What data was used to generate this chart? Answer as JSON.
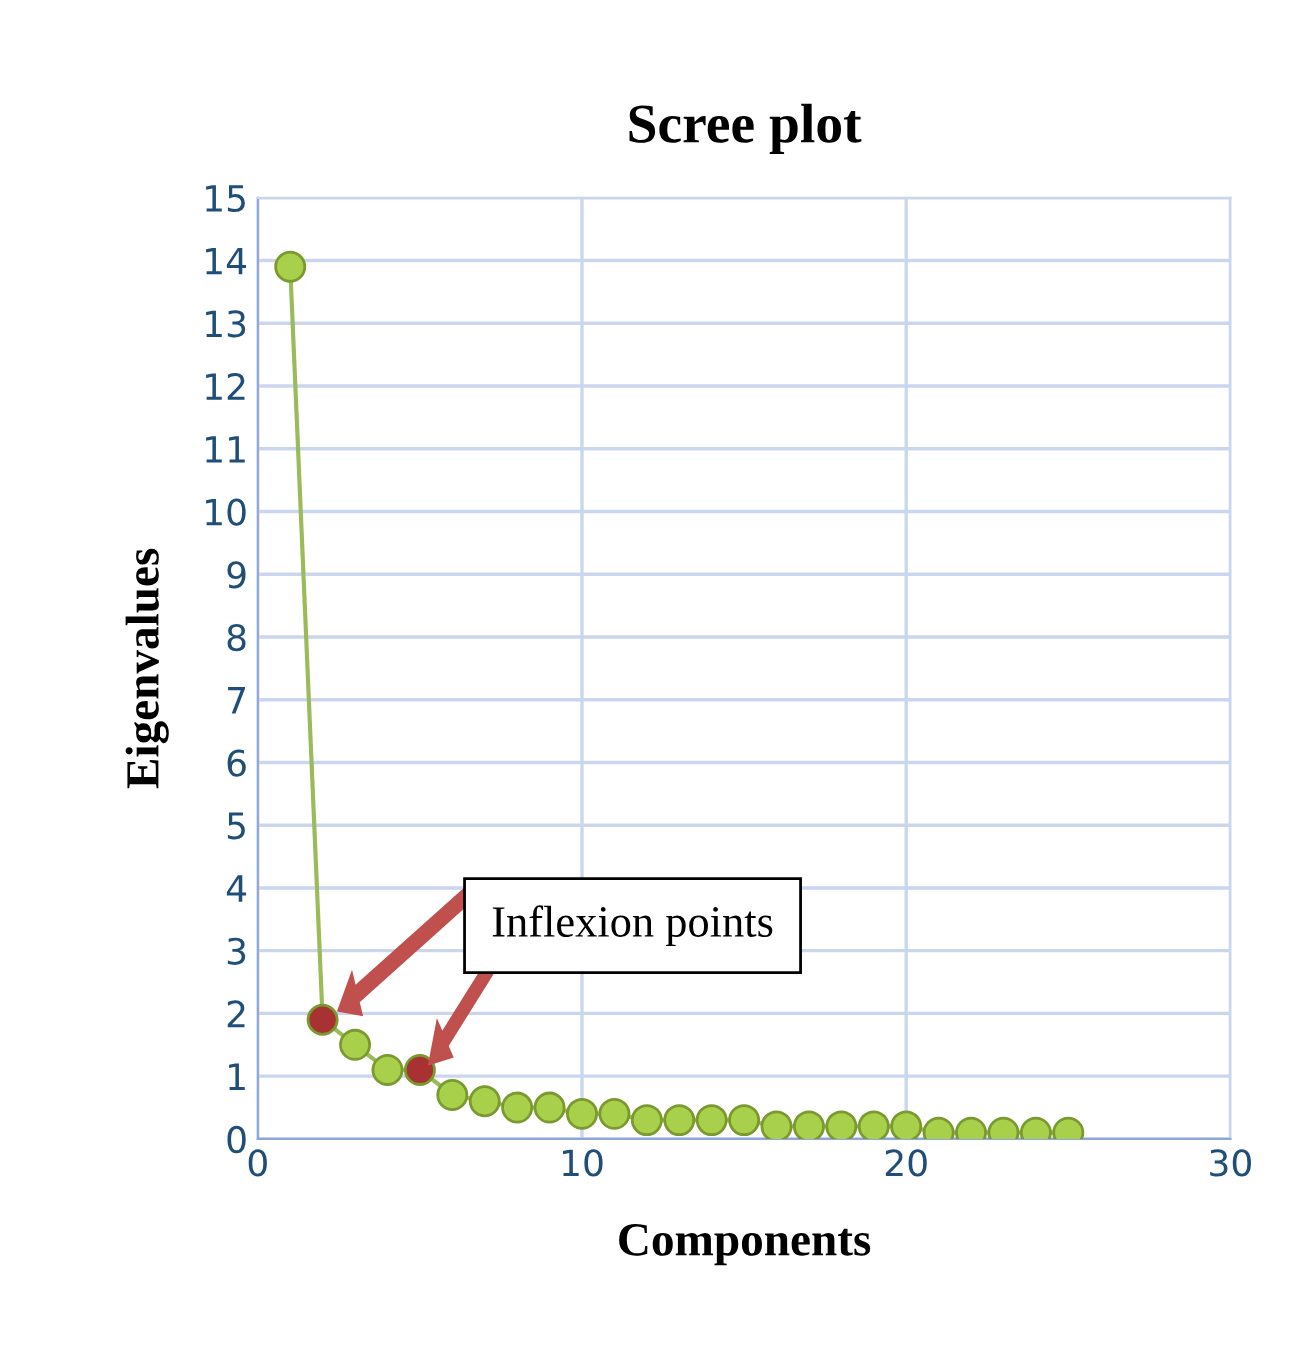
{
  "chart_data": {
    "type": "line",
    "title": "Scree plot",
    "xlabel": "Components",
    "ylabel": "Eigenvalues",
    "x": [
      1,
      2,
      3,
      4,
      5,
      6,
      7,
      8,
      9,
      10,
      11,
      12,
      13,
      14,
      15,
      16,
      17,
      18,
      19,
      20,
      21,
      22,
      23,
      24,
      25
    ],
    "series": [
      {
        "color": "#9bbb59",
        "colors": [
          "#a8d04a",
          "#a83232",
          "#a8d04a",
          "#a8d04a",
          "#a83232",
          "#a8d04a",
          "#a8d04a",
          "#a8d04a",
          "#a8d04a",
          "#a8d04a",
          "#a8d04a",
          "#a8d04a",
          "#a8d04a",
          "#a8d04a",
          "#a8d04a",
          "#a8d04a",
          "#a8d04a",
          "#a8d04a",
          "#a8d04a",
          "#a8d04a",
          "#a8d04a",
          "#a8d04a",
          "#a8d04a",
          "#a8d04a",
          "#a8d04a"
        ],
        "values": [
          13.9,
          1.9,
          1.5,
          1.1,
          1.1,
          0.7,
          0.6,
          0.5,
          0.5,
          0.4,
          0.4,
          0.3,
          0.3,
          0.3,
          0.3,
          0.2,
          0.2,
          0.2,
          0.2,
          0.2,
          0.1,
          0.1,
          0.1,
          0.1,
          0.1
        ]
      }
    ],
    "annotations": [
      "Inflexion points"
    ],
    "xlim": [
      0,
      30
    ],
    "xticks": [
      0,
      10,
      20,
      30
    ],
    "ylim": [
      0,
      15
    ],
    "yticks": [
      0,
      1,
      2,
      3,
      4,
      5,
      6,
      7,
      8,
      9,
      10,
      11,
      12,
      13,
      14,
      15
    ],
    "grid": true,
    "marker": "circle",
    "line_style": "solid"
  }
}
